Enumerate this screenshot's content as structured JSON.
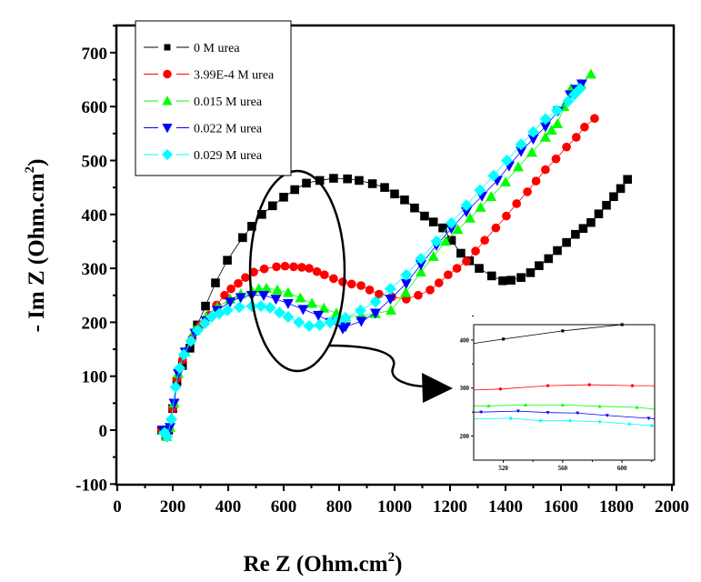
{
  "chart_data": [
    {
      "type": "scatter",
      "xlabel": "Re Z (Ohm.cm",
      "xlabel_sup": "2",
      "xlabel_end": ")",
      "ylabel": "- Im Z (Ohm.cm",
      "ylabel_sup": "2",
      "ylabel_end": ")",
      "xlim": [
        0,
        2000
      ],
      "ylim": [
        -100,
        740
      ],
      "xticks": [
        0,
        200,
        400,
        600,
        800,
        1000,
        1200,
        1400,
        1600,
        1800,
        2000
      ],
      "yticks": [
        -100,
        0,
        100,
        200,
        300,
        400,
        500,
        600,
        700
      ],
      "grid": false,
      "legend_position": "top-left",
      "series": [
        {
          "name": "0 M urea",
          "color": "#000000",
          "marker": "square",
          "x": [
            160,
            175,
            185,
            200,
            215,
            235,
            262,
            289,
            318,
            354,
            397,
            452,
            485,
            521,
            560,
            600,
            640,
            682,
            730,
            780,
            830,
            872,
            920,
            964,
            1000,
            1036,
            1072,
            1108,
            1140,
            1174,
            1205,
            1239,
            1270,
            1305,
            1350,
            1390,
            1420,
            1456,
            1490,
            1521,
            1555,
            1587,
            1620,
            1652,
            1680,
            1708,
            1736,
            1764,
            1790,
            1815,
            1840
          ],
          "y": [
            0,
            -10,
            0,
            40,
            90,
            120,
            152,
            195,
            230,
            273,
            315,
            357,
            378,
            400,
            416,
            432,
            446,
            458,
            463,
            467,
            466,
            463,
            457,
            450,
            438,
            427,
            412,
            397,
            386,
            375,
            352,
            328,
            314,
            300,
            286,
            277,
            278,
            283,
            292,
            305,
            318,
            333,
            348,
            363,
            374,
            385,
            401,
            417,
            433,
            448,
            465
          ]
        },
        {
          "name": "3.99E-4 M urea",
          "color": "#ff0000",
          "marker": "circle",
          "x": [
            160,
            175,
            185,
            200,
            215,
            235,
            270,
            300,
            331,
            358,
            387,
            410,
            436,
            462,
            492,
            530,
            574,
            605,
            636,
            665,
            692,
            720,
            747,
            780,
            813,
            845,
            879,
            910,
            944,
            990,
            1042,
            1085,
            1128,
            1160,
            1193,
            1225,
            1259,
            1292,
            1325,
            1365,
            1403,
            1440,
            1479,
            1510,
            1544,
            1582,
            1620,
            1655,
            1685,
            1721
          ],
          "y": [
            0,
            -10,
            0,
            40,
            95,
            130,
            170,
            195,
            213,
            232,
            250,
            262,
            272,
            283,
            293,
            299,
            303,
            304,
            303,
            302,
            300,
            294,
            288,
            281,
            275,
            271,
            268,
            260,
            252,
            247,
            243,
            250,
            260,
            273,
            288,
            300,
            313,
            332,
            352,
            375,
            397,
            420,
            442,
            462,
            483,
            503,
            525,
            543,
            562,
            578
          ]
        },
        {
          "name": "0.015 M urea",
          "color": "#00ff00",
          "marker": "triangle-up",
          "x": [
            165,
            178,
            190,
            205,
            220,
            245,
            280,
            320,
            360,
            407,
            445,
            485,
            510,
            538,
            577,
            616,
            660,
            702,
            745,
            790,
            823,
            880,
            930,
            987,
            1040,
            1095,
            1140,
            1184,
            1228,
            1272,
            1310,
            1348,
            1400,
            1446,
            1495,
            1544,
            1566,
            1587,
            1611,
            1636,
            1672,
            1708
          ],
          "y": [
            0,
            -12,
            5,
            50,
            105,
            145,
            185,
            210,
            228,
            243,
            252,
            258,
            262,
            263,
            260,
            255,
            245,
            235,
            226,
            217,
            210,
            212,
            216,
            222,
            255,
            293,
            322,
            350,
            372,
            393,
            413,
            433,
            460,
            488,
            515,
            543,
            556,
            568,
            600,
            633,
            642,
            660
          ]
        },
        {
          "name": "0.022 M urea",
          "color": "#0000ff",
          "marker": "triangle-down",
          "x": [
            165,
            178,
            190,
            205,
            220,
            245,
            280,
            320,
            360,
            407,
            445,
            485,
            528,
            572,
            616,
            670,
            725,
            770,
            813,
            823,
            880,
            931,
            985,
            1042,
            1095,
            1151,
            1205,
            1259,
            1315,
            1370,
            1413,
            1456,
            1500,
            1544,
            1590,
            1633,
            1655,
            1675
          ],
          "y": [
            0,
            -12,
            5,
            50,
            105,
            145,
            180,
            203,
            222,
            238,
            246,
            250,
            250,
            243,
            235,
            224,
            213,
            200,
            188,
            192,
            202,
            217,
            243,
            272,
            307,
            343,
            374,
            405,
            434,
            463,
            490,
            517,
            540,
            563,
            592,
            622,
            632,
            642
          ]
        },
        {
          "name": "0.029 M urea",
          "color": "#00ffff",
          "marker": "diamond",
          "x": [
            170,
            180,
            195,
            210,
            225,
            240,
            265,
            290,
            315,
            340,
            368,
            397,
            440,
            485,
            518,
            551,
            585,
            616,
            655,
            692,
            730,
            767,
            795,
            823,
            877,
            931,
            985,
            1042,
            1095,
            1151,
            1205,
            1259,
            1308,
            1357,
            1405,
            1456,
            1500,
            1544,
            1585,
            1626,
            1648,
            1669
          ],
          "y": [
            -5,
            -12,
            20,
            80,
            115,
            140,
            165,
            185,
            198,
            210,
            216,
            222,
            228,
            230,
            230,
            227,
            218,
            210,
            200,
            193,
            195,
            200,
            204,
            208,
            222,
            238,
            262,
            288,
            318,
            350,
            384,
            417,
            445,
            472,
            500,
            530,
            553,
            577,
            593,
            610,
            622,
            633
          ]
        }
      ]
    },
    {
      "type": "line",
      "xlim": [
        500,
        622
      ],
      "ylim": [
        150,
        432
      ],
      "xticks": [
        520,
        560,
        600
      ],
      "yticks": [
        200,
        300,
        400
      ],
      "grid": false,
      "series": [
        {
          "name": "0 M urea",
          "color": "#000000",
          "marker": "square",
          "x": [
            500,
            520,
            560,
            600,
            622
          ],
          "y": [
            393,
            402,
            419,
            432,
            432
          ]
        },
        {
          "name": "3.99E-4 M urea",
          "color": "#ff0000",
          "marker": "circle",
          "x": [
            500,
            518,
            550,
            578,
            607,
            622
          ],
          "y": [
            296,
            298,
            305,
            307,
            305,
            305
          ]
        },
        {
          "name": "0.015 M urea",
          "color": "#00ff00",
          "marker": "triangle-up",
          "x": [
            500,
            510,
            535,
            560,
            585,
            610,
            622
          ],
          "y": [
            263,
            263,
            265,
            265,
            262,
            260,
            256
          ]
        },
        {
          "name": "0.022 M urea",
          "color": "#0000ff",
          "marker": "triangle-down",
          "x": [
            500,
            505,
            530,
            550,
            570,
            590,
            618,
            622
          ],
          "y": [
            250,
            250,
            252,
            249,
            248,
            243,
            237,
            236
          ]
        },
        {
          "name": "0.029 M urea",
          "color": "#00ffff",
          "marker": "diamond",
          "x": [
            500,
            525,
            545,
            565,
            585,
            605,
            620,
            622
          ],
          "y": [
            236,
            237,
            232,
            232,
            230,
            225,
            222,
            221
          ]
        }
      ]
    }
  ]
}
